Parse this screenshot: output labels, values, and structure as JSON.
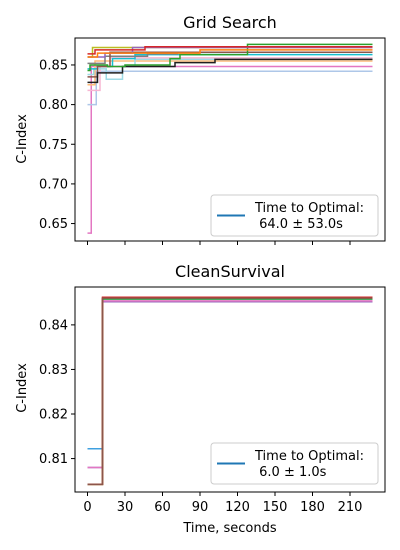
{
  "chart_data": [
    {
      "type": "line",
      "title": "Grid Search",
      "xlabel": "",
      "ylabel": "C-Index",
      "xlim": [
        -10,
        238
      ],
      "ylim": [
        0.628,
        0.884
      ],
      "x_ticks": [
        0,
        30,
        60,
        90,
        120,
        150,
        180,
        210
      ],
      "x_tick_labels_visible": false,
      "y_ticks": [
        0.65,
        0.7,
        0.75,
        0.8,
        0.85
      ],
      "y_tick_labels": [
        "0.65",
        "0.70",
        "0.75",
        "0.80",
        "0.85"
      ],
      "step": "post",
      "legend": {
        "label": "Time to Optimal:\n 64.0 ± 53.0s",
        "color": "#1f77b4",
        "placement": "lower right"
      },
      "series": [
        {
          "color": "#e377c2",
          "x": [
            0,
            3,
            228
          ],
          "y": [
            0.638,
            0.848,
            0.848
          ]
        },
        {
          "color": "#aec7e8",
          "x": [
            0,
            7,
            228
          ],
          "y": [
            0.8,
            0.842,
            0.842
          ]
        },
        {
          "color": "#ffbb78",
          "x": [
            0,
            6,
            228
          ],
          "y": [
            0.825,
            0.855,
            0.855
          ]
        },
        {
          "color": "#f7b6d2",
          "x": [
            0,
            10,
            18,
            228
          ],
          "y": [
            0.818,
            0.848,
            0.859,
            0.859
          ]
        },
        {
          "color": "#9edae5",
          "x": [
            0,
            5,
            15,
            28,
            38,
            228
          ],
          "y": [
            0.838,
            0.845,
            0.832,
            0.848,
            0.857,
            0.857
          ]
        },
        {
          "color": "#17becf",
          "x": [
            0,
            8,
            20,
            38,
            228
          ],
          "y": [
            0.845,
            0.848,
            0.858,
            0.863,
            0.863
          ]
        },
        {
          "color": "#7f7f7f",
          "x": [
            0,
            14,
            48,
            72,
            228
          ],
          "y": [
            0.852,
            0.861,
            0.864,
            0.866,
            0.866
          ]
        },
        {
          "color": "#8c564b",
          "x": [
            0,
            8,
            18,
            228
          ],
          "y": [
            0.835,
            0.848,
            0.866,
            0.866
          ]
        },
        {
          "color": "#bcbd22",
          "x": [
            0,
            4,
            228
          ],
          "y": [
            0.86,
            0.872,
            0.872
          ]
        },
        {
          "color": "#1f1f1f",
          "x": [
            0,
            8,
            28,
            70,
            102,
            228
          ],
          "y": [
            0.828,
            0.84,
            0.848,
            0.853,
            0.857,
            0.857
          ]
        },
        {
          "color": "#2ca02c",
          "x": [
            0,
            2,
            16,
            30,
            66,
            74,
            128,
            228
          ],
          "y": [
            0.843,
            0.85,
            0.848,
            0.85,
            0.858,
            0.863,
            0.876,
            0.876
          ]
        },
        {
          "color": "#9467bd",
          "x": [
            0,
            14,
            36,
            228
          ],
          "y": [
            0.86,
            0.865,
            0.872,
            0.872
          ]
        },
        {
          "color": "#d62728",
          "x": [
            0,
            6,
            46,
            228
          ],
          "y": [
            0.864,
            0.869,
            0.873,
            0.873
          ]
        },
        {
          "color": "#ff7f0e",
          "x": [
            0,
            8,
            90,
            228
          ],
          "y": [
            0.86,
            0.865,
            0.869,
            0.869
          ]
        }
      ]
    },
    {
      "type": "line",
      "title": "CleanSurvival",
      "xlabel": "Time, seconds",
      "ylabel": "C-Index",
      "xlim": [
        -10,
        238
      ],
      "ylim": [
        0.8025,
        0.8485
      ],
      "x_ticks": [
        0,
        30,
        60,
        90,
        120,
        150,
        180,
        210
      ],
      "x_tick_labels": [
        "0",
        "30",
        "60",
        "90",
        "120",
        "150",
        "180",
        "210"
      ],
      "y_ticks": [
        0.81,
        0.82,
        0.83,
        0.84
      ],
      "y_tick_labels": [
        "0.81",
        "0.82",
        "0.83",
        "0.84"
      ],
      "step": "post",
      "legend": {
        "label": "Time to Optimal:\n 6.0 ± 1.0s",
        "color": "#1f77b4",
        "placement": "lower right"
      },
      "series": [
        {
          "color": "#3fa0e0",
          "x": [
            0,
            12,
            228
          ],
          "y": [
            0.8122,
            0.8458,
            0.8458
          ]
        },
        {
          "color": "#9467bd",
          "x": [
            0,
            12,
            228
          ],
          "y": [
            0.808,
            0.8452,
            0.8452
          ]
        },
        {
          "color": "#e377c2",
          "x": [
            0,
            12,
            228
          ],
          "y": [
            0.808,
            0.8454,
            0.8454
          ]
        },
        {
          "color": "#ff7f0e",
          "x": [
            0,
            12,
            228
          ],
          "y": [
            0.8042,
            0.846,
            0.846
          ]
        },
        {
          "color": "#2ca02c",
          "x": [
            0,
            12,
            228
          ],
          "y": [
            0.8042,
            0.8458,
            0.8458
          ]
        },
        {
          "color": "#d62728",
          "x": [
            0,
            12,
            228
          ],
          "y": [
            0.8042,
            0.8462,
            0.8462
          ]
        },
        {
          "color": "#8c564b",
          "x": [
            0,
            12,
            228
          ],
          "y": [
            0.8042,
            0.846,
            0.846
          ]
        }
      ]
    }
  ]
}
